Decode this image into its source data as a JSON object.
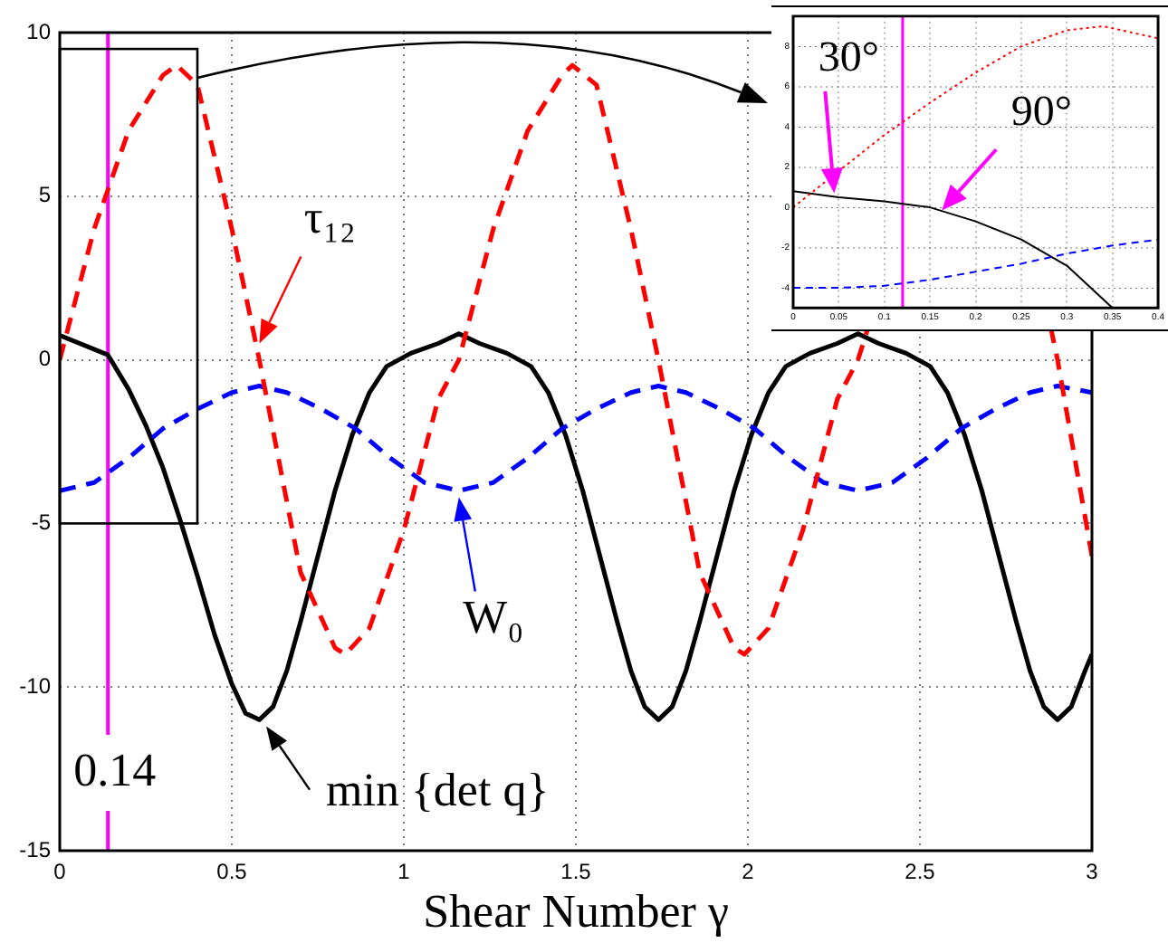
{
  "chart_data": [
    {
      "type": "line",
      "xlabel": "Shear Number γ",
      "xlim": [
        0,
        3
      ],
      "ylim": [
        -15,
        10
      ],
      "xticks": [
        0,
        0.5,
        1,
        1.5,
        2,
        2.5,
        3
      ],
      "yticks": [
        -15,
        -10,
        -5,
        0,
        5,
        10
      ],
      "grid": true,
      "series": [
        {
          "color": "#ff0000",
          "line_style": "dashed",
          "x": [
            0,
            0.1,
            0.2,
            0.3,
            0.34,
            0.4,
            0.5,
            0.58,
            0.7,
            0.8,
            0.83,
            0.9,
            1.0,
            1.1,
            1.16,
            1.26,
            1.36,
            1.46,
            1.49,
            1.56,
            1.66,
            1.74,
            1.86,
            1.96,
            1.99,
            2.06,
            2.16,
            2.26,
            2.32,
            2.35,
            2.45,
            2.55,
            2.65,
            2.75,
            2.85,
            2.88,
            2.9,
            3.0
          ],
          "values": [
            0,
            4.0,
            7.0,
            8.7,
            9.0,
            8.4,
            4.0,
            0,
            -6.5,
            -8.8,
            -9.0,
            -8.2,
            -5.2,
            -1.2,
            0,
            4.0,
            7.0,
            8.7,
            9.0,
            8.4,
            4.0,
            0,
            -6.5,
            -8.8,
            -9.0,
            -8.2,
            -5.2,
            -1.2,
            0,
            1.0,
            null,
            null,
            null,
            null,
            null,
            1.0,
            0,
            -6.0
          ]
        },
        {
          "color": "#0000ff",
          "line_style": "dashed",
          "x": [
            0,
            0.1,
            0.2,
            0.3,
            0.4,
            0.5,
            0.58,
            0.66,
            0.76,
            0.86,
            0.96,
            1.06,
            1.16,
            1.26,
            1.36,
            1.46,
            1.56,
            1.66,
            1.74,
            1.82,
            1.92,
            2.02,
            2.12,
            2.22,
            2.32,
            2.42,
            2.52,
            2.62,
            2.72,
            2.82,
            2.9,
            3.0
          ],
          "values": [
            -4,
            -3.75,
            -3.0,
            -2.1,
            -1.5,
            -1.0,
            -0.8,
            -1.0,
            -1.5,
            -2.1,
            -3.0,
            -3.75,
            -4,
            -3.75,
            -3.0,
            -2.1,
            -1.5,
            -1.0,
            -0.8,
            -1.0,
            -1.5,
            -2.1,
            -3.0,
            -3.75,
            -4,
            -3.75,
            -3.0,
            -2.1,
            -1.5,
            -1.0,
            -0.8,
            -1.0
          ]
        },
        {
          "color": "#000000",
          "line_style": "solid",
          "x": [
            0,
            0.14,
            0.2,
            0.25,
            0.3,
            0.35,
            0.4,
            0.45,
            0.5,
            0.54,
            0.58,
            0.62,
            0.66,
            0.7,
            0.75,
            0.8,
            0.85,
            0.9,
            0.95,
            1.02,
            1.1,
            1.16,
            1.22,
            1.3,
            1.37,
            1.42,
            1.47,
            1.52,
            1.57,
            1.62,
            1.66,
            1.7,
            1.74,
            1.78,
            1.82,
            1.86,
            1.91,
            1.96,
            2.01,
            2.06,
            2.11,
            2.18,
            2.26,
            2.32,
            2.38,
            2.46,
            2.53,
            2.58,
            2.63,
            2.68,
            2.73,
            2.78,
            2.82,
            2.86,
            2.9,
            2.94,
            2.98,
            3.0
          ],
          "values": [
            0.75,
            0.15,
            -0.9,
            -2.0,
            -3.3,
            -4.9,
            -6.6,
            -8.4,
            -9.9,
            -10.8,
            -11.0,
            -10.6,
            -9.5,
            -8.0,
            -6.0,
            -4.0,
            -2.3,
            -1.0,
            -0.2,
            0.2,
            0.5,
            0.8,
            0.5,
            0.2,
            -0.2,
            -1.0,
            -2.3,
            -4.0,
            -6.0,
            -8.0,
            -9.5,
            -10.6,
            -11.0,
            -10.6,
            -9.5,
            -8.0,
            -6.0,
            -4.0,
            -2.3,
            -1.0,
            -0.2,
            0.2,
            0.5,
            0.8,
            0.5,
            0.2,
            -0.2,
            -1.0,
            -2.3,
            -4.0,
            -6.0,
            -8.0,
            -9.5,
            -10.6,
            -11.0,
            -10.6,
            -9.5,
            -9.0
          ]
        }
      ],
      "ref_lines": [
        {
          "axis": "x",
          "value": 0.14,
          "label": "0.14",
          "color": "#ff00ff"
        }
      ],
      "annotations": [
        {
          "text": "τ₁₂",
          "x": 0.58,
          "y": 0.5
        },
        {
          "text": "W₀",
          "x": 1.16,
          "y": -4.2
        },
        {
          "text": "min {det q}",
          "x": 0.6,
          "y": -11.2
        }
      ]
    },
    {
      "type": "line",
      "xlim": [
        0,
        0.4
      ],
      "ylim": [
        -5,
        9.5
      ],
      "xticks": [
        0,
        0.05,
        0.1,
        0.15,
        0.2,
        0.25,
        0.3,
        0.35,
        0.4
      ],
      "yticks": [
        -4,
        -2,
        0,
        2,
        4,
        6,
        8
      ],
      "grid": true,
      "series": [
        {
          "color": "#ff0000",
          "line_style": "dotted",
          "x": [
            0,
            0.1,
            0.15,
            0.2,
            0.25,
            0.3,
            0.34,
            0.4
          ],
          "values": [
            0,
            3.6,
            5.2,
            6.7,
            8.0,
            8.8,
            9.0,
            8.4
          ]
        },
        {
          "color": "#0000ff",
          "line_style": "dashed",
          "x": [
            0,
            0.05,
            0.1,
            0.15,
            0.2,
            0.25,
            0.3,
            0.35,
            0.4
          ],
          "values": [
            -4,
            -4,
            -3.9,
            -3.6,
            -3.2,
            -2.8,
            -2.3,
            -1.9,
            -1.6
          ]
        },
        {
          "color": "#000000",
          "line_style": "solid",
          "x": [
            0,
            0.05,
            0.1,
            0.15,
            0.2,
            0.25,
            0.3,
            0.35
          ],
          "values": [
            0.8,
            0.5,
            0.3,
            0.0,
            -0.7,
            -1.6,
            -2.9,
            -5.0
          ]
        }
      ],
      "ref_lines": [
        {
          "axis": "x",
          "value": 0.12,
          "color": "#ff00ff"
        }
      ],
      "annotations": [
        {
          "text": "30°",
          "x": 0.045,
          "y": 0.7
        },
        {
          "text": "90°",
          "x": 0.163,
          "y": -0.15
        }
      ]
    }
  ]
}
